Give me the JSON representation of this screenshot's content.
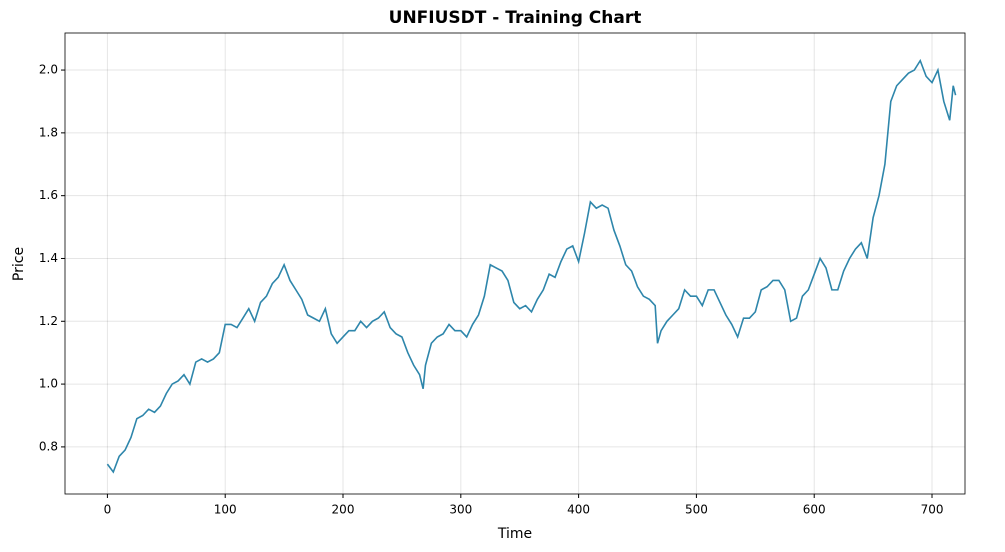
{
  "chart_data": {
    "type": "line",
    "title": "UNFIUSDT - Training Chart",
    "xlabel": "Time",
    "ylabel": "Price",
    "x": [
      0,
      5,
      10,
      15,
      20,
      25,
      30,
      35,
      40,
      45,
      50,
      55,
      60,
      65,
      70,
      75,
      80,
      85,
      90,
      95,
      100,
      105,
      110,
      115,
      120,
      125,
      130,
      135,
      140,
      145,
      150,
      155,
      160,
      165,
      170,
      175,
      180,
      185,
      190,
      195,
      200,
      205,
      210,
      215,
      220,
      225,
      230,
      235,
      240,
      245,
      250,
      255,
      260,
      265,
      268,
      270,
      275,
      280,
      285,
      290,
      295,
      300,
      305,
      310,
      315,
      320,
      325,
      330,
      335,
      340,
      345,
      350,
      355,
      360,
      365,
      370,
      375,
      380,
      385,
      390,
      395,
      400,
      405,
      410,
      415,
      420,
      425,
      430,
      435,
      440,
      445,
      450,
      455,
      460,
      465,
      467,
      470,
      475,
      480,
      485,
      490,
      495,
      500,
      505,
      510,
      515,
      520,
      525,
      530,
      535,
      540,
      545,
      550,
      555,
      560,
      565,
      570,
      575,
      580,
      585,
      590,
      595,
      600,
      605,
      610,
      615,
      620,
      625,
      630,
      635,
      640,
      645,
      650,
      655,
      660,
      665,
      670,
      675,
      680,
      685,
      690,
      695,
      700,
      705,
      710,
      715,
      718,
      720
    ],
    "series": [
      {
        "name": "UNFIUSDT",
        "color": "#2e86ab",
        "values": [
          0.745,
          0.72,
          0.77,
          0.79,
          0.83,
          0.89,
          0.9,
          0.92,
          0.91,
          0.93,
          0.97,
          1.0,
          1.01,
          1.03,
          1.0,
          1.07,
          1.08,
          1.07,
          1.08,
          1.1,
          1.19,
          1.19,
          1.18,
          1.21,
          1.24,
          1.2,
          1.26,
          1.28,
          1.32,
          1.34,
          1.38,
          1.33,
          1.3,
          1.27,
          1.22,
          1.21,
          1.2,
          1.24,
          1.16,
          1.13,
          1.15,
          1.17,
          1.17,
          1.2,
          1.18,
          1.2,
          1.21,
          1.23,
          1.18,
          1.16,
          1.15,
          1.1,
          1.06,
          1.03,
          0.985,
          1.06,
          1.13,
          1.15,
          1.16,
          1.19,
          1.17,
          1.17,
          1.15,
          1.19,
          1.22,
          1.28,
          1.38,
          1.37,
          1.36,
          1.33,
          1.26,
          1.24,
          1.25,
          1.23,
          1.27,
          1.3,
          1.35,
          1.34,
          1.39,
          1.43,
          1.44,
          1.39,
          1.48,
          1.58,
          1.56,
          1.57,
          1.56,
          1.49,
          1.44,
          1.38,
          1.36,
          1.31,
          1.28,
          1.27,
          1.25,
          1.13,
          1.17,
          1.2,
          1.22,
          1.24,
          1.3,
          1.28,
          1.28,
          1.25,
          1.3,
          1.3,
          1.26,
          1.22,
          1.19,
          1.15,
          1.21,
          1.21,
          1.23,
          1.3,
          1.31,
          1.33,
          1.33,
          1.3,
          1.2,
          1.21,
          1.28,
          1.3,
          1.35,
          1.4,
          1.37,
          1.3,
          1.3,
          1.36,
          1.4,
          1.43,
          1.45,
          1.4,
          1.53,
          1.6,
          1.7,
          1.9,
          1.95,
          1.97,
          1.99,
          2.0,
          2.03,
          1.98,
          1.96,
          2.0,
          1.9,
          1.84,
          1.95,
          1.92
        ]
      }
    ],
    "xlim": [
      -36,
      728
    ],
    "ylim": [
      0.65,
      2.118
    ],
    "xticks": [
      0,
      100,
      200,
      300,
      400,
      500,
      600,
      700
    ],
    "yticks": [
      0.8,
      {
        "value": 1.0,
        "label": "1.0"
      },
      1.2,
      1.4,
      1.6,
      1.8,
      {
        "value": 2.0,
        "label": "2.0"
      }
    ],
    "grid": true
  }
}
